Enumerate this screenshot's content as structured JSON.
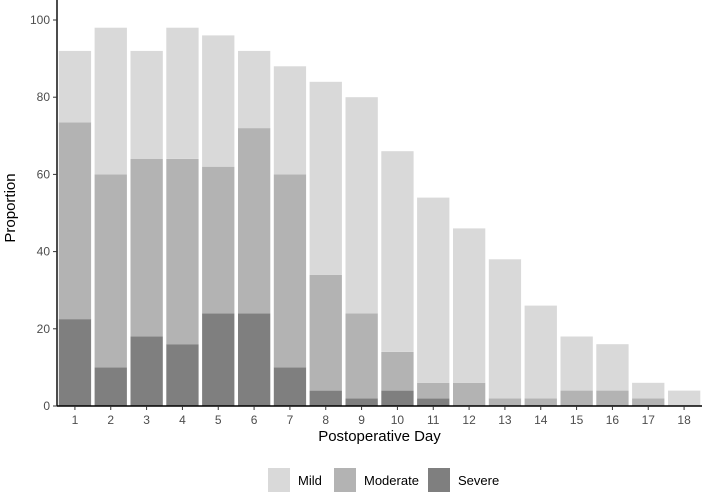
{
  "chart_data": {
    "type": "bar",
    "stacked": true,
    "xlabel": "Postoperative Day",
    "ylabel": "Proportion",
    "ylim": [
      0,
      100
    ],
    "yticks": [
      0,
      20,
      40,
      60,
      80,
      100
    ],
    "grid": false,
    "legend_position": "bottom",
    "categories": [
      "1",
      "2",
      "3",
      "4",
      "5",
      "6",
      "7",
      "8",
      "9",
      "10",
      "11",
      "12",
      "13",
      "14",
      "15",
      "16",
      "17",
      "18"
    ],
    "series": [
      {
        "name": "Severe",
        "color": "#7f7f7f",
        "values": [
          22.5,
          10,
          18,
          16,
          24,
          24,
          10,
          4,
          2,
          4,
          2,
          0,
          0,
          0,
          0,
          0,
          0,
          0
        ]
      },
      {
        "name": "Moderate",
        "color": "#b3b3b3",
        "values": [
          51,
          50,
          46,
          48,
          38,
          48,
          50,
          30,
          22,
          10,
          4,
          6,
          2,
          2,
          4,
          4,
          2,
          0
        ]
      },
      {
        "name": "Mild",
        "color": "#d9d9d9",
        "values": [
          18.5,
          38,
          28,
          34,
          34,
          20,
          28,
          50,
          56,
          52,
          48,
          40,
          36,
          24,
          14,
          12,
          4,
          4
        ]
      }
    ],
    "legend_order": [
      "Mild",
      "Moderate",
      "Severe"
    ]
  }
}
